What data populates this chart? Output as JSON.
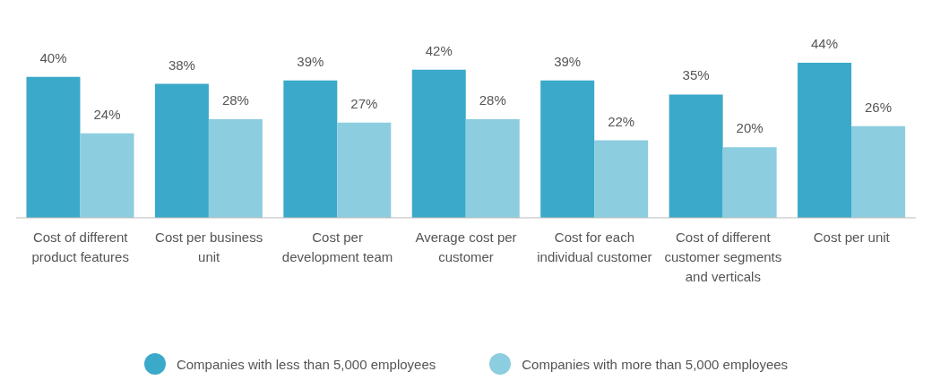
{
  "chart_data": {
    "type": "bar",
    "categories": [
      "Cost of different product features",
      "Cost per business unit",
      "Cost per development team",
      "Average cost per customer",
      "Cost for each individual customer",
      "Cost of different customer segments and verticals",
      "Cost per unit"
    ],
    "series": [
      {
        "name": "Companies with less than 5,000 employees",
        "color": "#3ba9c9",
        "values": [
          40,
          38,
          39,
          42,
          39,
          35,
          44
        ],
        "value_labels": [
          "40%",
          "38%",
          "39%",
          "42%",
          "39%",
          "35%",
          "44%"
        ]
      },
      {
        "name": "Companies with more than 5,000 employees",
        "color": "#8ccde0",
        "values": [
          24,
          28,
          27,
          28,
          22,
          20,
          26
        ],
        "value_labels": [
          "24%",
          "28%",
          "27%",
          "28%",
          "22%",
          "20%",
          "26%"
        ]
      }
    ],
    "legend": "bottom",
    "grid": false
  }
}
